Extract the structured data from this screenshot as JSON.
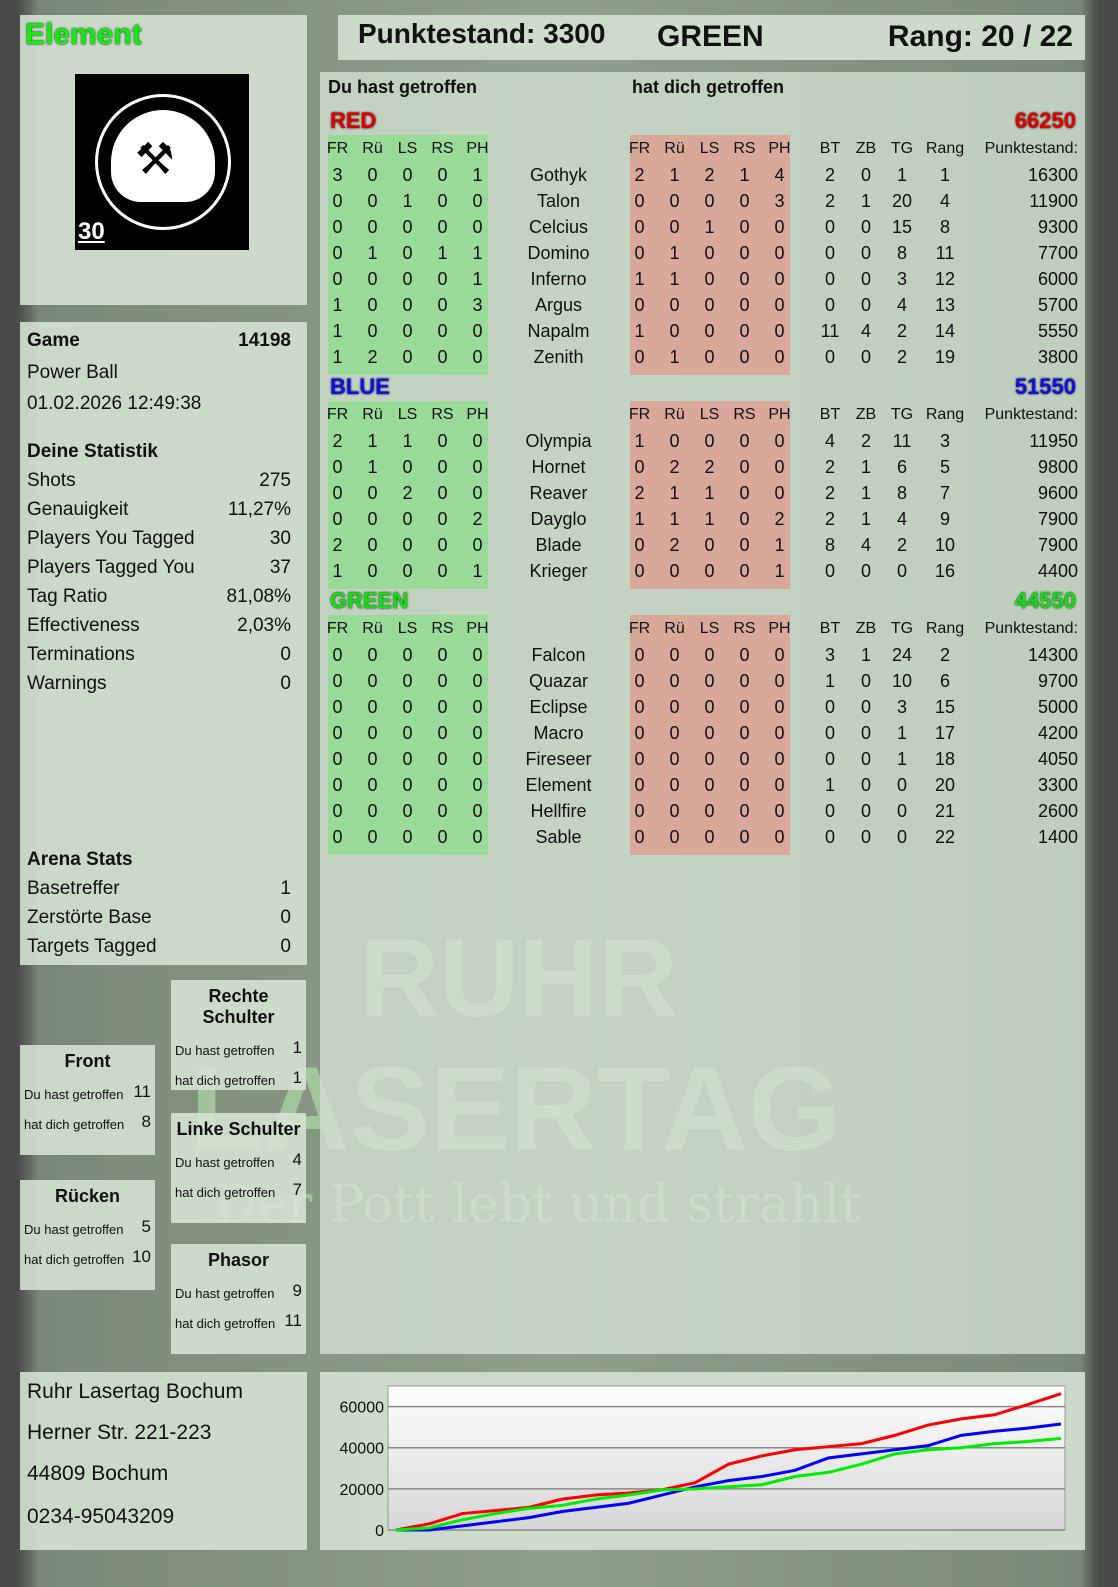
{
  "player": {
    "name": "Element",
    "logo_text": "RUHR LASERTAG",
    "logo_number": "30"
  },
  "header": {
    "score_label": "Punktestand: 3300",
    "team": "GREEN",
    "rank_label": "Rang: 20 / 22"
  },
  "game": {
    "label": "Game",
    "id": "14198",
    "mode": "Power Ball",
    "datetime": "01.02.2026 12:49:38"
  },
  "stats": {
    "title": "Deine Statistik",
    "rows": [
      {
        "label": "Shots",
        "value": "275"
      },
      {
        "label": "Genauigkeit",
        "value": "11,27%"
      },
      {
        "label": "Players You Tagged",
        "value": "30"
      },
      {
        "label": "Players Tagged You",
        "value": "37"
      },
      {
        "label": "Tag Ratio",
        "value": "81,08%"
      },
      {
        "label": "Effectiveness",
        "value": "2,03%"
      },
      {
        "label": "Terminations",
        "value": "0"
      },
      {
        "label": "Warnings",
        "value": "0"
      }
    ]
  },
  "arena": {
    "title": "Arena Stats",
    "rows": [
      {
        "label": "Basetreffer",
        "value": "1"
      },
      {
        "label": "Zerstörte Base",
        "value": "0"
      },
      {
        "label": "Targets Tagged",
        "value": "0"
      }
    ]
  },
  "zones": [
    {
      "title": "Rechte Schulter",
      "hit_label": "Du hast getroffen",
      "hit": "1",
      "got_label": "hat dich getroffen",
      "got": "1"
    },
    {
      "title": "Front",
      "hit_label": "Du hast getroffen",
      "hit": "11",
      "got_label": "hat dich getroffen",
      "got": "8"
    },
    {
      "title": "Linke Schulter",
      "hit_label": "Du hast getroffen",
      "hit": "4",
      "got_label": "hat dich getroffen",
      "got": "7"
    },
    {
      "title": "Rücken",
      "hit_label": "Du hast getroffen",
      "hit": "5",
      "got_label": "hat dich getroffen",
      "got": "10"
    },
    {
      "title": "Phasor",
      "hit_label": "Du hast getroffen",
      "hit": "9",
      "got_label": "hat dich getroffen",
      "got": "11"
    }
  ],
  "address": [
    "Ruhr Lasertag Bochum",
    "Herner Str. 221-223",
    "44809 Bochum",
    "0234-95043209"
  ],
  "table": {
    "you_hit_label": "Du hast getroffen",
    "hit_you_label": "hat dich getroffen",
    "hit_cols": [
      "FR",
      "Rü",
      "LS",
      "RS",
      "PH"
    ],
    "stat_cols": [
      "BT",
      "ZB",
      "TG",
      "Rang",
      "Punktestand:"
    ],
    "teams": [
      {
        "name": "RED",
        "total": "66250",
        "color": "#e00000",
        "players": [
          {
            "n": "Gothyk",
            "h": [
              3,
              0,
              0,
              0,
              1
            ],
            "g": [
              2,
              1,
              2,
              1,
              4
            ],
            "s": [
              2,
              0,
              1,
              1,
              16300
            ]
          },
          {
            "n": "Talon",
            "h": [
              0,
              0,
              1,
              0,
              0
            ],
            "g": [
              0,
              0,
              0,
              0,
              3
            ],
            "s": [
              2,
              1,
              20,
              4,
              11900
            ]
          },
          {
            "n": "Celcius",
            "h": [
              0,
              0,
              0,
              0,
              0
            ],
            "g": [
              0,
              0,
              1,
              0,
              0
            ],
            "s": [
              0,
              0,
              15,
              8,
              9300
            ]
          },
          {
            "n": "Domino",
            "h": [
              0,
              1,
              0,
              1,
              1
            ],
            "g": [
              0,
              1,
              0,
              0,
              0
            ],
            "s": [
              0,
              0,
              8,
              11,
              7700
            ]
          },
          {
            "n": "Inferno",
            "h": [
              0,
              0,
              0,
              0,
              1
            ],
            "g": [
              1,
              1,
              0,
              0,
              0
            ],
            "s": [
              0,
              0,
              3,
              12,
              6000
            ]
          },
          {
            "n": "Argus",
            "h": [
              1,
              0,
              0,
              0,
              3
            ],
            "g": [
              0,
              0,
              0,
              0,
              0
            ],
            "s": [
              0,
              0,
              4,
              13,
              5700
            ]
          },
          {
            "n": "Napalm",
            "h": [
              1,
              0,
              0,
              0,
              0
            ],
            "g": [
              1,
              0,
              0,
              0,
              0
            ],
            "s": [
              11,
              4,
              2,
              14,
              5550
            ]
          },
          {
            "n": "Zenith",
            "h": [
              1,
              2,
              0,
              0,
              0
            ],
            "g": [
              0,
              1,
              0,
              0,
              0
            ],
            "s": [
              0,
              0,
              2,
              19,
              3800
            ]
          }
        ]
      },
      {
        "name": "BLUE",
        "total": "51550",
        "color": "#1010e0",
        "players": [
          {
            "n": "Olympia",
            "h": [
              2,
              1,
              1,
              0,
              0
            ],
            "g": [
              1,
              0,
              0,
              0,
              0
            ],
            "s": [
              4,
              2,
              11,
              3,
              11950
            ]
          },
          {
            "n": "Hornet",
            "h": [
              0,
              1,
              0,
              0,
              0
            ],
            "g": [
              0,
              2,
              2,
              0,
              0
            ],
            "s": [
              2,
              1,
              6,
              5,
              9800
            ]
          },
          {
            "n": "Reaver",
            "h": [
              0,
              0,
              2,
              0,
              0
            ],
            "g": [
              2,
              1,
              1,
              0,
              0
            ],
            "s": [
              2,
              1,
              8,
              7,
              9600
            ]
          },
          {
            "n": "Dayglo",
            "h": [
              0,
              0,
              0,
              0,
              2
            ],
            "g": [
              1,
              1,
              1,
              0,
              2
            ],
            "s": [
              2,
              1,
              4,
              9,
              7900
            ]
          },
          {
            "n": "Blade",
            "h": [
              2,
              0,
              0,
              0,
              0
            ],
            "g": [
              0,
              2,
              0,
              0,
              1
            ],
            "s": [
              8,
              4,
              2,
              10,
              7900
            ]
          },
          {
            "n": "Krieger",
            "h": [
              1,
              0,
              0,
              0,
              1
            ],
            "g": [
              0,
              0,
              0,
              0,
              1
            ],
            "s": [
              0,
              0,
              0,
              16,
              4400
            ]
          }
        ]
      },
      {
        "name": "GREEN",
        "total": "44550",
        "color": "#10e010",
        "players": [
          {
            "n": "Falcon",
            "h": [
              0,
              0,
              0,
              0,
              0
            ],
            "g": [
              0,
              0,
              0,
              0,
              0
            ],
            "s": [
              3,
              1,
              24,
              2,
              14300
            ]
          },
          {
            "n": "Quazar",
            "h": [
              0,
              0,
              0,
              0,
              0
            ],
            "g": [
              0,
              0,
              0,
              0,
              0
            ],
            "s": [
              1,
              0,
              10,
              6,
              9700
            ]
          },
          {
            "n": "Eclipse",
            "h": [
              0,
              0,
              0,
              0,
              0
            ],
            "g": [
              0,
              0,
              0,
              0,
              0
            ],
            "s": [
              0,
              0,
              3,
              15,
              5000
            ]
          },
          {
            "n": "Macro",
            "h": [
              0,
              0,
              0,
              0,
              0
            ],
            "g": [
              0,
              0,
              0,
              0,
              0
            ],
            "s": [
              0,
              0,
              1,
              17,
              4200
            ]
          },
          {
            "n": "Fireseer",
            "h": [
              0,
              0,
              0,
              0,
              0
            ],
            "g": [
              0,
              0,
              0,
              0,
              0
            ],
            "s": [
              0,
              0,
              1,
              18,
              4050
            ]
          },
          {
            "n": "Element",
            "h": [
              0,
              0,
              0,
              0,
              0
            ],
            "g": [
              0,
              0,
              0,
              0,
              0
            ],
            "s": [
              1,
              0,
              0,
              20,
              3300
            ]
          },
          {
            "n": "Hellfire",
            "h": [
              0,
              0,
              0,
              0,
              0
            ],
            "g": [
              0,
              0,
              0,
              0,
              0
            ],
            "s": [
              0,
              0,
              0,
              21,
              2600
            ]
          },
          {
            "n": "Sable",
            "h": [
              0,
              0,
              0,
              0,
              0
            ],
            "g": [
              0,
              0,
              0,
              0,
              0
            ],
            "s": [
              0,
              0,
              0,
              22,
              1400
            ]
          }
        ]
      }
    ]
  },
  "watermark": {
    "line1": "RUHR",
    "line2": "LASERTAG",
    "tagline": "Der Pott lebt und strahlt"
  },
  "chart_data": {
    "type": "line",
    "ylim": [
      0,
      70000
    ],
    "yticks": [
      0,
      20000,
      40000,
      60000
    ],
    "grid": true,
    "x": [
      0,
      1,
      2,
      3,
      4,
      5,
      6,
      7,
      8,
      9,
      10,
      11,
      12,
      13,
      14,
      15,
      16,
      17,
      18,
      19,
      20
    ],
    "series": [
      {
        "color": "#ff0000",
        "values": [
          0,
          3000,
          8000,
          9500,
          11000,
          15000,
          17000,
          18000,
          19500,
          23000,
          32000,
          36000,
          39000,
          40500,
          42000,
          46000,
          51000,
          54000,
          56000,
          61000,
          66250
        ]
      },
      {
        "color": "#0000ff",
        "values": [
          0,
          0,
          2000,
          4000,
          6000,
          9000,
          11000,
          13000,
          17000,
          21000,
          24000,
          26000,
          29000,
          35000,
          37000,
          39000,
          41000,
          46000,
          48000,
          49500,
          51550
        ]
      },
      {
        "color": "#00ee00",
        "values": [
          0,
          1000,
          5000,
          8000,
          10500,
          12000,
          15000,
          17000,
          19500,
          20000,
          21000,
          22000,
          26000,
          28000,
          32000,
          37000,
          39000,
          40000,
          42000,
          43000,
          44550
        ]
      }
    ]
  }
}
